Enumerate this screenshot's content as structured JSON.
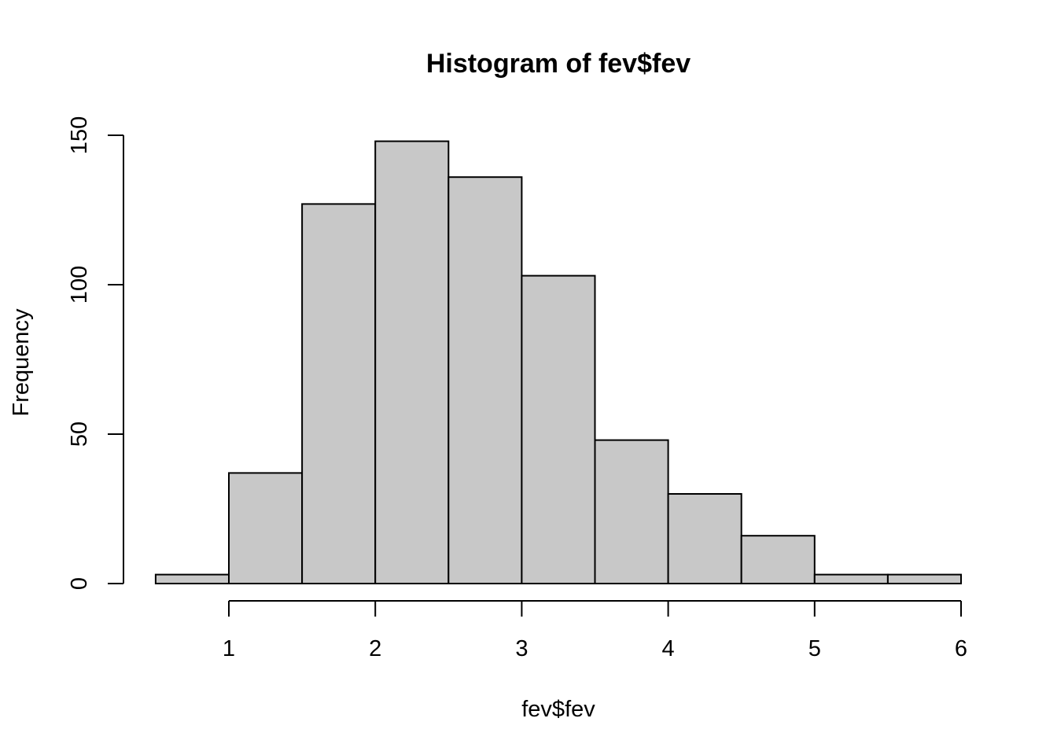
{
  "chart_data": {
    "type": "bar",
    "title": "Histogram of fev$fev",
    "xlabel": "fev$fev",
    "ylabel": "Frequency",
    "bins": [
      {
        "x0": 0.5,
        "x1": 1.0,
        "count": 3
      },
      {
        "x0": 1.0,
        "x1": 1.5,
        "count": 37
      },
      {
        "x0": 1.5,
        "x1": 2.0,
        "count": 127
      },
      {
        "x0": 2.0,
        "x1": 2.5,
        "count": 148
      },
      {
        "x0": 2.5,
        "x1": 3.0,
        "count": 136
      },
      {
        "x0": 3.0,
        "x1": 3.5,
        "count": 103
      },
      {
        "x0": 3.5,
        "x1": 4.0,
        "count": 48
      },
      {
        "x0": 4.0,
        "x1": 4.5,
        "count": 30
      },
      {
        "x0": 4.5,
        "x1": 5.0,
        "count": 16
      },
      {
        "x0": 5.0,
        "x1": 5.5,
        "count": 3
      },
      {
        "x0": 5.5,
        "x1": 6.0,
        "count": 3
      }
    ],
    "xticks": [
      "1",
      "2",
      "3",
      "4",
      "5",
      "6"
    ],
    "yticks": [
      "0",
      "50",
      "100",
      "150"
    ],
    "xlim": [
      0.5,
      6.0
    ],
    "ylim": [
      0,
      150
    ],
    "grid": false,
    "colors": {
      "bar_fill": "#c8c8c8",
      "bar_stroke": "#000000"
    }
  }
}
